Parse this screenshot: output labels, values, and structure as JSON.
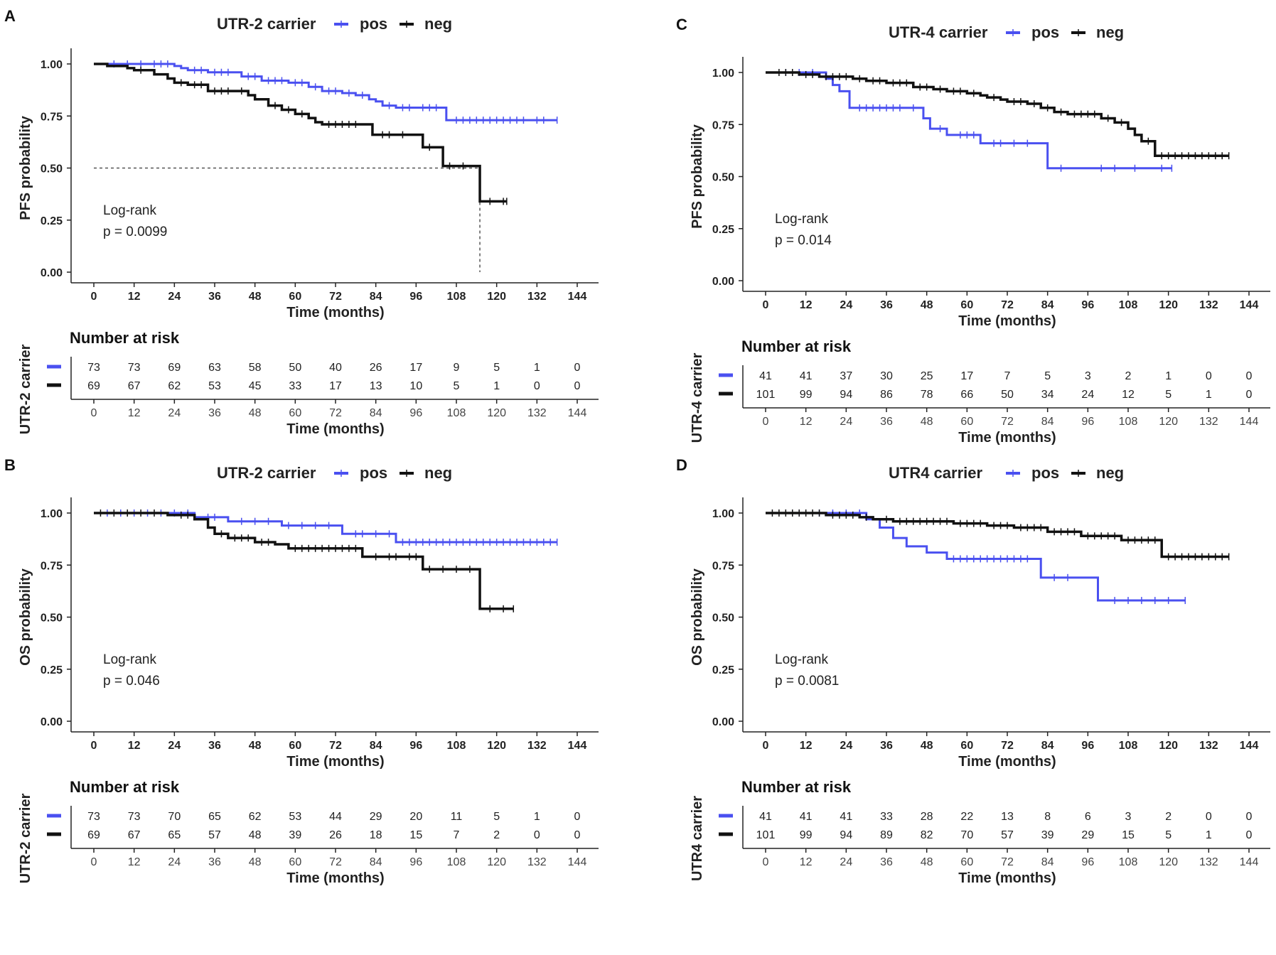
{
  "colors": {
    "pos": "#4a50f0",
    "neg": "#111111",
    "axis": "#222222"
  },
  "chart_data": [
    {
      "panel": "A",
      "type": "line",
      "legend_title": "UTR-2 carrier",
      "legend_labels": [
        "pos",
        "neg"
      ],
      "ylabel": "PFS probability",
      "xlabel": "Time (months)",
      "xlim": [
        0,
        144
      ],
      "ylim": [
        0,
        1
      ],
      "xticks": [
        "0",
        "12",
        "24",
        "36",
        "48",
        "60",
        "72",
        "84",
        "96",
        "108",
        "120",
        "132",
        "144"
      ],
      "yticks": [
        "0.00",
        "0.25",
        "0.50",
        "0.75",
        "1.00"
      ],
      "stat_label": "Log-rank",
      "stat_value": "p = 0.0099",
      "median_line": {
        "y": 0.5,
        "x": 115
      },
      "risk_title": "Number at risk",
      "risk_ylabel": "UTR-2 carrier",
      "risk_pos": [
        "73",
        "73",
        "69",
        "63",
        "58",
        "50",
        "40",
        "26",
        "17",
        "9",
        "5",
        "1",
        "0"
      ],
      "risk_neg": [
        "69",
        "67",
        "62",
        "53",
        "45",
        "33",
        "17",
        "13",
        "10",
        "5",
        "1",
        "0",
        "0"
      ],
      "series": [
        {
          "name": "pos",
          "end": 138,
          "steps": [
            [
              0,
              1.0
            ],
            [
              24,
              0.99
            ],
            [
              26,
              0.98
            ],
            [
              28,
              0.97
            ],
            [
              34,
              0.96
            ],
            [
              44,
              0.94
            ],
            [
              50,
              0.92
            ],
            [
              58,
              0.91
            ],
            [
              64,
              0.89
            ],
            [
              68,
              0.87
            ],
            [
              74,
              0.86
            ],
            [
              78,
              0.85
            ],
            [
              82,
              0.83
            ],
            [
              84,
              0.82
            ],
            [
              86,
              0.8
            ],
            [
              90,
              0.79
            ],
            [
              105,
              0.73
            ]
          ],
          "censors": [
            6,
            10,
            14,
            18,
            20,
            22,
            30,
            32,
            36,
            38,
            40,
            46,
            48,
            52,
            54,
            56,
            60,
            62,
            66,
            70,
            72,
            76,
            80,
            88,
            92,
            94,
            98,
            100,
            102,
            108,
            110,
            112,
            114,
            116,
            118,
            120,
            122,
            124,
            126,
            128,
            132,
            134
          ]
        },
        {
          "name": "neg",
          "end": 123,
          "steps": [
            [
              0,
              1.0
            ],
            [
              4,
              0.99
            ],
            [
              10,
              0.98
            ],
            [
              12,
              0.97
            ],
            [
              18,
              0.95
            ],
            [
              22,
              0.93
            ],
            [
              24,
              0.91
            ],
            [
              28,
              0.9
            ],
            [
              34,
              0.87
            ],
            [
              46,
              0.85
            ],
            [
              48,
              0.83
            ],
            [
              52,
              0.8
            ],
            [
              56,
              0.78
            ],
            [
              60,
              0.76
            ],
            [
              64,
              0.74
            ],
            [
              66,
              0.72
            ],
            [
              68,
              0.71
            ],
            [
              83,
              0.66
            ],
            [
              98,
              0.6
            ],
            [
              104,
              0.51
            ],
            [
              115,
              0.34
            ]
          ],
          "censors": [
            14,
            26,
            30,
            32,
            36,
            38,
            40,
            44,
            54,
            58,
            62,
            70,
            72,
            74,
            76,
            78,
            86,
            88,
            92,
            100,
            106,
            110,
            118,
            122
          ]
        }
      ]
    },
    {
      "panel": "C",
      "type": "line",
      "legend_title": "UTR-4 carrier",
      "legend_labels": [
        "pos",
        "neg"
      ],
      "ylabel": "PFS probability",
      "xlabel": "Time (months)",
      "xlim": [
        0,
        144
      ],
      "ylim": [
        0,
        1
      ],
      "xticks": [
        "0",
        "12",
        "24",
        "36",
        "48",
        "60",
        "72",
        "84",
        "96",
        "108",
        "120",
        "132",
        "144"
      ],
      "yticks": [
        "0.00",
        "0.25",
        "0.50",
        "0.75",
        "1.00"
      ],
      "stat_label": "Log-rank",
      "stat_value": "p = 0.014",
      "median_line": null,
      "risk_title": "Number at risk",
      "risk_ylabel": "UTR-4 carrier",
      "risk_pos": [
        "41",
        "41",
        "37",
        "30",
        "25",
        "17",
        "7",
        "5",
        "3",
        "2",
        "1",
        "0",
        "0"
      ],
      "risk_neg": [
        "101",
        "99",
        "94",
        "86",
        "78",
        "66",
        "50",
        "34",
        "24",
        "12",
        "5",
        "1",
        "0"
      ],
      "series": [
        {
          "name": "pos",
          "end": 121,
          "steps": [
            [
              0,
              1.0
            ],
            [
              18,
              0.97
            ],
            [
              20,
              0.94
            ],
            [
              22,
              0.91
            ],
            [
              25,
              0.83
            ],
            [
              47,
              0.78
            ],
            [
              49,
              0.73
            ],
            [
              54,
              0.7
            ],
            [
              64,
              0.66
            ],
            [
              84,
              0.54
            ]
          ],
          "censors": [
            6,
            10,
            14,
            28,
            30,
            32,
            34,
            36,
            38,
            40,
            44,
            52,
            58,
            60,
            62,
            68,
            70,
            74,
            78,
            88,
            100,
            104,
            110,
            118
          ]
        },
        {
          "name": "neg",
          "end": 138,
          "steps": [
            [
              0,
              1.0
            ],
            [
              10,
              0.99
            ],
            [
              16,
              0.98
            ],
            [
              26,
              0.97
            ],
            [
              30,
              0.96
            ],
            [
              36,
              0.95
            ],
            [
              44,
              0.93
            ],
            [
              50,
              0.92
            ],
            [
              54,
              0.91
            ],
            [
              60,
              0.9
            ],
            [
              64,
              0.89
            ],
            [
              66,
              0.88
            ],
            [
              70,
              0.87
            ],
            [
              72,
              0.86
            ],
            [
              78,
              0.85
            ],
            [
              82,
              0.83
            ],
            [
              86,
              0.81
            ],
            [
              90,
              0.8
            ],
            [
              100,
              0.78
            ],
            [
              104,
              0.76
            ],
            [
              108,
              0.73
            ],
            [
              110,
              0.7
            ],
            [
              112,
              0.67
            ],
            [
              116,
              0.6
            ]
          ],
          "censors": [
            4,
            6,
            8,
            12,
            14,
            18,
            20,
            22,
            24,
            28,
            32,
            34,
            38,
            40,
            42,
            46,
            48,
            52,
            56,
            58,
            62,
            68,
            74,
            76,
            80,
            84,
            88,
            92,
            94,
            96,
            98,
            102,
            106,
            114,
            118,
            120,
            122,
            124,
            126,
            128,
            130,
            132,
            134,
            136
          ]
        }
      ]
    },
    {
      "panel": "B",
      "type": "line",
      "legend_title": "UTR-2 carrier",
      "legend_labels": [
        "pos",
        "neg"
      ],
      "ylabel": "OS probability",
      "xlabel": "Time (months)",
      "xlim": [
        0,
        144
      ],
      "ylim": [
        0,
        1
      ],
      "xticks": [
        "0",
        "12",
        "24",
        "36",
        "48",
        "60",
        "72",
        "84",
        "96",
        "108",
        "120",
        "132",
        "144"
      ],
      "yticks": [
        "0.00",
        "0.25",
        "0.50",
        "0.75",
        "1.00"
      ],
      "stat_label": "Log-rank",
      "stat_value": "p = 0.046",
      "median_line": null,
      "risk_title": "Number at risk",
      "risk_ylabel": "UTR-2 carrier",
      "risk_pos": [
        "73",
        "73",
        "70",
        "65",
        "62",
        "53",
        "44",
        "29",
        "20",
        "11",
        "5",
        "1",
        "0"
      ],
      "risk_neg": [
        "69",
        "67",
        "65",
        "57",
        "48",
        "39",
        "26",
        "18",
        "15",
        "7",
        "2",
        "0",
        "0"
      ],
      "series": [
        {
          "name": "pos",
          "end": 138,
          "steps": [
            [
              0,
              1.0
            ],
            [
              30,
              0.98
            ],
            [
              40,
              0.96
            ],
            [
              56,
              0.94
            ],
            [
              74,
              0.9
            ],
            [
              90,
              0.86
            ]
          ],
          "censors": [
            4,
            8,
            12,
            16,
            20,
            24,
            28,
            34,
            36,
            44,
            48,
            52,
            58,
            62,
            66,
            70,
            78,
            80,
            84,
            88,
            92,
            94,
            96,
            98,
            100,
            102,
            104,
            106,
            108,
            110,
            112,
            114,
            116,
            118,
            120,
            122,
            124,
            126,
            128,
            130,
            132,
            134,
            136
          ]
        },
        {
          "name": "neg",
          "end": 125,
          "steps": [
            [
              0,
              1.0
            ],
            [
              22,
              0.99
            ],
            [
              30,
              0.97
            ],
            [
              34,
              0.93
            ],
            [
              36,
              0.9
            ],
            [
              40,
              0.88
            ],
            [
              48,
              0.86
            ],
            [
              54,
              0.85
            ],
            [
              58,
              0.83
            ],
            [
              80,
              0.79
            ],
            [
              98,
              0.73
            ],
            [
              115,
              0.54
            ]
          ],
          "censors": [
            2,
            6,
            10,
            14,
            18,
            26,
            28,
            38,
            42,
            44,
            46,
            50,
            52,
            60,
            62,
            64,
            66,
            68,
            70,
            72,
            74,
            76,
            78,
            84,
            88,
            90,
            94,
            96,
            100,
            104,
            108,
            112,
            118,
            122
          ]
        }
      ]
    },
    {
      "panel": "D",
      "type": "line",
      "legend_title": "UTR4 carrier",
      "legend_labels": [
        "pos",
        "neg"
      ],
      "ylabel": "OS probability",
      "xlabel": "Time (months)",
      "xlim": [
        0,
        144
      ],
      "ylim": [
        0,
        1
      ],
      "xticks": [
        "0",
        "12",
        "24",
        "36",
        "48",
        "60",
        "72",
        "84",
        "96",
        "108",
        "120",
        "132",
        "144"
      ],
      "yticks": [
        "0.00",
        "0.25",
        "0.50",
        "0.75",
        "1.00"
      ],
      "stat_label": "Log-rank",
      "stat_value": "p = 0.0081",
      "median_line": null,
      "risk_title": "Number at risk",
      "risk_ylabel": "UTR4 carrier",
      "risk_pos": [
        "41",
        "41",
        "41",
        "33",
        "28",
        "22",
        "13",
        "8",
        "6",
        "3",
        "2",
        "0",
        "0"
      ],
      "risk_neg": [
        "101",
        "99",
        "94",
        "89",
        "82",
        "70",
        "57",
        "39",
        "29",
        "15",
        "5",
        "1",
        "0"
      ],
      "series": [
        {
          "name": "pos",
          "end": 125,
          "steps": [
            [
              0,
              1.0
            ],
            [
              30,
              0.97
            ],
            [
              34,
              0.93
            ],
            [
              38,
              0.88
            ],
            [
              42,
              0.84
            ],
            [
              48,
              0.81
            ],
            [
              54,
              0.78
            ],
            [
              82,
              0.69
            ],
            [
              99,
              0.58
            ]
          ],
          "censors": [
            10,
            16,
            20,
            24,
            28,
            56,
            58,
            60,
            62,
            64,
            66,
            68,
            70,
            72,
            74,
            76,
            78,
            86,
            90,
            104,
            108,
            112,
            116,
            120
          ]
        },
        {
          "name": "neg",
          "end": 138,
          "steps": [
            [
              0,
              1.0
            ],
            [
              18,
              0.99
            ],
            [
              28,
              0.98
            ],
            [
              32,
              0.97
            ],
            [
              38,
              0.96
            ],
            [
              56,
              0.95
            ],
            [
              66,
              0.94
            ],
            [
              74,
              0.93
            ],
            [
              84,
              0.91
            ],
            [
              94,
              0.89
            ],
            [
              106,
              0.87
            ],
            [
              118,
              0.79
            ]
          ],
          "censors": [
            2,
            4,
            6,
            8,
            10,
            12,
            14,
            16,
            20,
            22,
            24,
            26,
            30,
            36,
            40,
            42,
            44,
            46,
            48,
            50,
            52,
            54,
            58,
            60,
            62,
            64,
            68,
            70,
            72,
            76,
            78,
            80,
            82,
            86,
            88,
            90,
            92,
            96,
            98,
            100,
            102,
            104,
            108,
            110,
            112,
            114,
            116,
            120,
            122,
            124,
            126,
            128,
            130,
            132,
            134,
            136
          ]
        }
      ]
    }
  ]
}
